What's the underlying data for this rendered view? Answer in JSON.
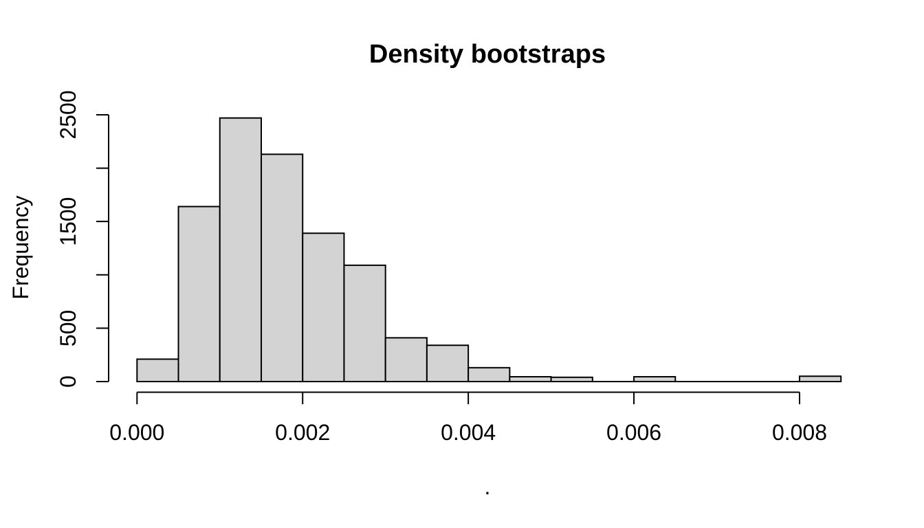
{
  "figure": {
    "background": "#ffffff"
  },
  "chart_data": {
    "type": "bar",
    "subtype": "histogram",
    "title": "Density bootstraps",
    "xlabel": ".",
    "ylabel": "Frequency",
    "grid": false,
    "legend": null,
    "xlim": [
      0,
      0.0085
    ],
    "ylim": [
      0,
      2500
    ],
    "bin_start": 0,
    "bin_width": 0.0005,
    "bin_edges": [
      0,
      0.0005,
      0.001,
      0.0015,
      0.002,
      0.0025,
      0.003,
      0.0035,
      0.004,
      0.0045,
      0.005,
      0.0055,
      0.006,
      0.0065,
      0.007,
      0.0075,
      0.008,
      0.0085
    ],
    "categories": [
      "0-0.0005",
      "0.0005-0.001",
      "0.001-0.0015",
      "0.0015-0.002",
      "0.002-0.0025",
      "0.0025-0.003",
      "0.003-0.0035",
      "0.0035-0.004",
      "0.004-0.0045",
      "0.0045-0.005",
      "0.005-0.0055",
      "0.0055-0.006",
      "0.006-0.0065",
      "0.0065-0.007",
      "0.007-0.0075",
      "0.0075-0.008",
      "0.008-0.0085"
    ],
    "values": [
      210,
      1640,
      2470,
      2130,
      1390,
      1090,
      410,
      340,
      130,
      45,
      40,
      0,
      45,
      0,
      0,
      0,
      50
    ],
    "x_ticks": [
      {
        "value": 0,
        "label": "0.000"
      },
      {
        "value": 0.002,
        "label": "0.002"
      },
      {
        "value": 0.004,
        "label": "0.004"
      },
      {
        "value": 0.006,
        "label": "0.006"
      },
      {
        "value": 0.008,
        "label": "0.008"
      }
    ],
    "y_ticks": [
      {
        "value": 0,
        "label": "0"
      },
      {
        "value": 500,
        "label": "500"
      },
      {
        "value": 1000,
        "label": ""
      },
      {
        "value": 1500,
        "label": "1500"
      },
      {
        "value": 2000,
        "label": ""
      },
      {
        "value": 2500,
        "label": "2500"
      }
    ],
    "colors": {
      "bar_fill": "#d3d3d3",
      "bar_stroke": "#000000",
      "axis": "#000000",
      "text": "#000000"
    }
  }
}
